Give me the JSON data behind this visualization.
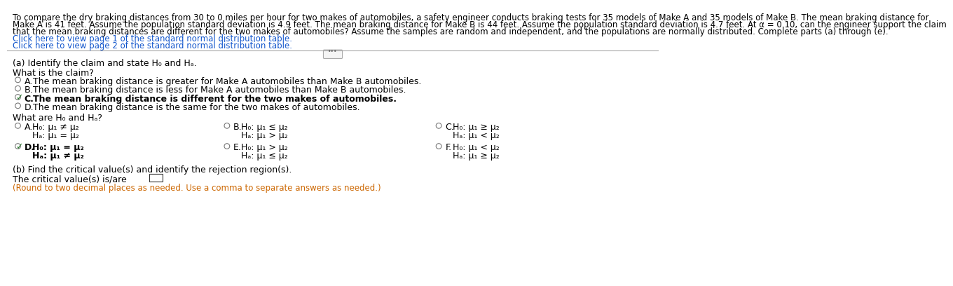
{
  "bg_color": "#ffffff",
  "text_color": "#000000",
  "link_color": "#1155CC",
  "green_check_color": "#2e7d32",
  "para_line1": "To compare the dry braking distances from 30 to 0 miles per hour for two makes of automobiles, a safety engineer conducts braking tests for 35 models of Make A and 35 models of Make B. The mean braking distance for",
  "para_line2": "Make A is 41 feet. Assume the population standard deviation is 4.9 feet. The mean braking distance for Make B is 44 feet. Assume the population standard deviation is 4.7 feet. At α = 0.10, can the engineer support the claim",
  "para_line3": "that the mean braking distances are different for the two makes of automobiles? Assume the samples are random and independent, and the populations are normally distributed. Complete parts (a) through (e).",
  "link1": "Click here to view page 1 of the standard normal distribution table.",
  "link2": "Click here to view page 2 of the standard normal distribution table.",
  "part_a_label": "(a) Identify the claim and state H₀ and Hₐ.",
  "what_is_claim": "What is the claim?",
  "claim_options": [
    {
      "letter": "A.",
      "text": "The mean braking distance is greater for Make A automobiles than Make B automobiles.",
      "selected": false
    },
    {
      "letter": "B.",
      "text": "The mean braking distance is less for Make A automobiles than Make B automobiles.",
      "selected": false
    },
    {
      "letter": "C.",
      "text": "The mean braking distance is different for the two makes of automobiles.",
      "selected": true
    },
    {
      "letter": "D.",
      "text": "The mean braking distance is the same for the two makes of automobiles.",
      "selected": false
    }
  ],
  "what_are_ho_ha": "What are H₀ and Hₐ?",
  "ho_ha_options": [
    {
      "row": 0,
      "col": 0,
      "letter": "A.",
      "ho_line": "H₀: μ₁ ≠ μ₂",
      "ha_line": "Hₐ: μ₁ = μ₂",
      "selected": false
    },
    {
      "row": 0,
      "col": 1,
      "letter": "B.",
      "ho_line": "H₀: μ₁ ≤ μ₂",
      "ha_line": "Hₐ: μ₁ > μ₂",
      "selected": false
    },
    {
      "row": 0,
      "col": 2,
      "letter": "C.",
      "ho_line": "H₀: μ₁ ≥ μ₂",
      "ha_line": "Hₐ: μ₁ < μ₂",
      "selected": false
    },
    {
      "row": 1,
      "col": 0,
      "letter": "D.",
      "ho_line": "H₀: μ₁ = μ₂",
      "ha_line": "Hₐ: μ₁ ≠ μ₂",
      "selected": true
    },
    {
      "row": 1,
      "col": 1,
      "letter": "E.",
      "ho_line": "H₀: μ₁ > μ₂",
      "ha_line": "Hₐ: μ₁ ≤ μ₂",
      "selected": false
    },
    {
      "row": 1,
      "col": 2,
      "letter": "F.",
      "ho_line": "H₀: μ₁ < μ₂",
      "ha_line": "Hₐ: μ₁ ≥ μ₂",
      "selected": false
    }
  ],
  "part_b_label": "(b) Find the critical value(s) and identify the rejection region(s).",
  "critical_value_text": "The critical value(s) is/are",
  "round_note": "(Round to two decimal places as needed. Use a comma to separate answers as needed.)"
}
